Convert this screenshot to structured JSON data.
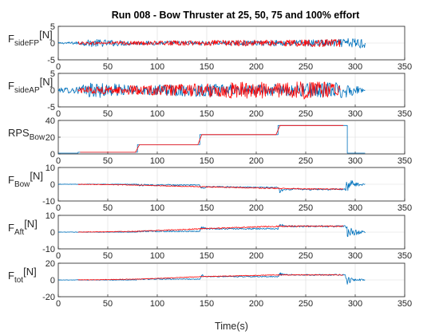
{
  "figure": {
    "title": "Run 008 - Bow Thruster at 25, 50, 75 and 100% effort",
    "xlabel": "Time(s)"
  },
  "colors": {
    "blue": "#0072BD",
    "red": "#FF0000"
  },
  "chart_data": [
    {
      "type": "line",
      "ylabel_main": "F",
      "ylabel_sub": "sideFP",
      "ylabel_unit": "[N]",
      "xlim": [
        0,
        350
      ],
      "ylim": [
        -5,
        5
      ],
      "xticks": [
        "0",
        "50",
        "100",
        "150",
        "200",
        "250",
        "300",
        "350"
      ],
      "yticks": [
        "-5",
        "0",
        "5"
      ],
      "ytick_values": [
        -5,
        0,
        5
      ],
      "grid": true,
      "series": [
        {
          "color": "blue",
          "x": [
            0,
            20,
            35,
            80,
            145,
            175,
            225,
            250,
            285,
            295,
            310
          ],
          "y": [
            0,
            0,
            0,
            0,
            0,
            0,
            0,
            0,
            0,
            0,
            0
          ],
          "noise": [
            0.2,
            0.5,
            1.2,
            0.6,
            0.6,
            0.6,
            0.9,
            1.0,
            1.2,
            1.5,
            1.8
          ]
        },
        {
          "color": "red",
          "x": [
            20,
            35,
            80,
            145,
            175,
            225,
            250,
            285
          ],
          "y": [
            0,
            0,
            0,
            0,
            0,
            0,
            0,
            0
          ],
          "noise": [
            0.4,
            0.5,
            0.6,
            0.8,
            0.9,
            1.0,
            1.1,
            1.1
          ]
        }
      ]
    },
    {
      "type": "line",
      "ylabel_main": "F",
      "ylabel_sub": "sideAP",
      "ylabel_unit": "[N]",
      "xlim": [
        0,
        350
      ],
      "ylim": [
        -5,
        5
      ],
      "xticks": [
        "0",
        "50",
        "100",
        "150",
        "200",
        "250",
        "300",
        "350"
      ],
      "yticks": [
        "-5",
        "0",
        "5"
      ],
      "ytick_values": [
        -5,
        0,
        5
      ],
      "grid": true,
      "series": [
        {
          "color": "blue",
          "x": [
            0,
            20,
            35,
            80,
            145,
            175,
            225,
            250,
            285,
            295,
            310
          ],
          "y": [
            0,
            0,
            0,
            0,
            0,
            0,
            0,
            0,
            0,
            0,
            0
          ],
          "noise": [
            0.6,
            1.2,
            2.4,
            1.4,
            2.0,
            1.6,
            1.8,
            2.0,
            2.6,
            2.0,
            0.3
          ]
        },
        {
          "color": "red",
          "x": [
            20,
            35,
            80,
            145,
            175,
            225,
            250,
            285
          ],
          "y": [
            0,
            0,
            0,
            0,
            0,
            0,
            0,
            0
          ],
          "noise": [
            0.9,
            1.1,
            1.4,
            2.0,
            2.6,
            2.4,
            2.8,
            2.4
          ]
        }
      ]
    },
    {
      "type": "line",
      "ylabel_main": "RPS",
      "ylabel_sub": "Bow",
      "ylabel_unit": "",
      "xlim": [
        0,
        350
      ],
      "ylim": [
        0,
        40
      ],
      "xticks": [
        "0",
        "50",
        "100",
        "150",
        "200",
        "250",
        "300",
        "350"
      ],
      "yticks": [
        "0",
        "20",
        "40"
      ],
      "ytick_values": [
        0,
        20,
        40
      ],
      "grid": true,
      "series": [
        {
          "color": "blue",
          "x": [
            0,
            20,
            20,
            80,
            80,
            143,
            143,
            222,
            222,
            292,
            292,
            310
          ],
          "y": [
            0,
            0,
            2,
            2,
            11,
            11,
            23,
            23,
            34,
            34,
            0,
            0
          ],
          "noise": [
            0,
            0,
            0,
            0,
            0,
            0,
            0,
            0,
            0,
            0,
            0,
            0
          ]
        },
        {
          "color": "red",
          "x": [
            22,
            78,
            82,
            141,
            145,
            220,
            224,
            288
          ],
          "y": [
            2,
            2,
            11,
            11,
            23,
            23,
            34,
            34
          ],
          "noise": [
            0,
            0,
            0,
            0,
            0,
            0,
            0,
            0
          ]
        }
      ]
    },
    {
      "type": "line",
      "ylabel_main": "F",
      "ylabel_sub": "Bow",
      "ylabel_unit": "[N]",
      "xlim": [
        0,
        350
      ],
      "ylim": [
        -10,
        10
      ],
      "xticks": [
        "0",
        "50",
        "100",
        "150",
        "200",
        "250",
        "300",
        "350"
      ],
      "yticks": [
        "-10",
        "0",
        "10"
      ],
      "ytick_values": [
        -10,
        0,
        10
      ],
      "grid": true,
      "series": [
        {
          "color": "blue",
          "x": [
            0,
            79,
            80,
            143,
            145,
            150,
            222,
            224,
            230,
            290,
            292,
            296,
            310
          ],
          "y": [
            0,
            0,
            -0.5,
            -0.5,
            -2.5,
            -1.5,
            -2,
            -4,
            -3,
            -3,
            0,
            0,
            0
          ],
          "noise": [
            0.15,
            0.15,
            0.6,
            0.3,
            0.9,
            0.4,
            0.4,
            1.4,
            0.5,
            0.5,
            4.5,
            2.5,
            0.3
          ]
        },
        {
          "color": "red",
          "x": [
            20,
            80,
            145,
            222,
            288
          ],
          "y": [
            0,
            -0.5,
            -1.5,
            -2.5,
            -3
          ],
          "noise": [
            0.15,
            0.2,
            0.25,
            0.3,
            0.3
          ]
        }
      ]
    },
    {
      "type": "line",
      "ylabel_main": "F",
      "ylabel_sub": "Aft",
      "ylabel_unit": "[N]",
      "xlim": [
        0,
        350
      ],
      "ylim": [
        -10,
        10
      ],
      "xticks": [
        "0",
        "50",
        "100",
        "150",
        "200",
        "250",
        "300",
        "350"
      ],
      "yticks": [
        "-10",
        "0",
        "10"
      ],
      "ytick_values": [
        -10,
        0,
        10
      ],
      "grid": true,
      "series": [
        {
          "color": "blue",
          "x": [
            0,
            79,
            80,
            143,
            145,
            150,
            222,
            224,
            230,
            290,
            292,
            296,
            310
          ],
          "y": [
            0,
            0,
            0.5,
            0.5,
            3,
            2,
            2,
            4,
            3.5,
            3.5,
            0,
            0,
            0
          ],
          "noise": [
            0.15,
            0.15,
            0.5,
            0.3,
            1.2,
            0.4,
            0.4,
            1.4,
            0.5,
            0.5,
            5,
            3,
            0.3
          ]
        },
        {
          "color": "red",
          "x": [
            20,
            80,
            145,
            222,
            288
          ],
          "y": [
            0,
            0.5,
            2,
            3.5,
            3.5
          ],
          "noise": [
            0.15,
            0.2,
            0.3,
            0.35,
            0.35
          ]
        }
      ]
    },
    {
      "type": "line",
      "ylabel_main": "F",
      "ylabel_sub": "tot",
      "ylabel_unit": "[N]",
      "xlim": [
        0,
        350
      ],
      "ylim": [
        -20,
        20
      ],
      "xticks": [
        "0",
        "50",
        "100",
        "150",
        "200",
        "250",
        "300",
        "350"
      ],
      "yticks": [
        "-20",
        "0",
        "20"
      ],
      "ytick_values": [
        -20,
        0,
        20
      ],
      "grid": true,
      "series": [
        {
          "color": "blue",
          "x": [
            0,
            79,
            80,
            143,
            145,
            150,
            222,
            224,
            230,
            290,
            292,
            296,
            310
          ],
          "y": [
            0,
            0,
            1,
            1,
            5,
            4,
            4,
            7,
            6,
            6,
            0,
            0,
            0
          ],
          "noise": [
            0.3,
            0.3,
            0.8,
            0.4,
            1.5,
            0.6,
            0.6,
            2,
            0.8,
            0.8,
            6,
            3,
            0.4
          ]
        },
        {
          "color": "red",
          "x": [
            20,
            80,
            145,
            222,
            288
          ],
          "y": [
            0,
            1,
            4,
            6,
            6
          ],
          "noise": [
            0.3,
            0.3,
            0.4,
            0.5,
            0.5
          ]
        }
      ]
    }
  ]
}
